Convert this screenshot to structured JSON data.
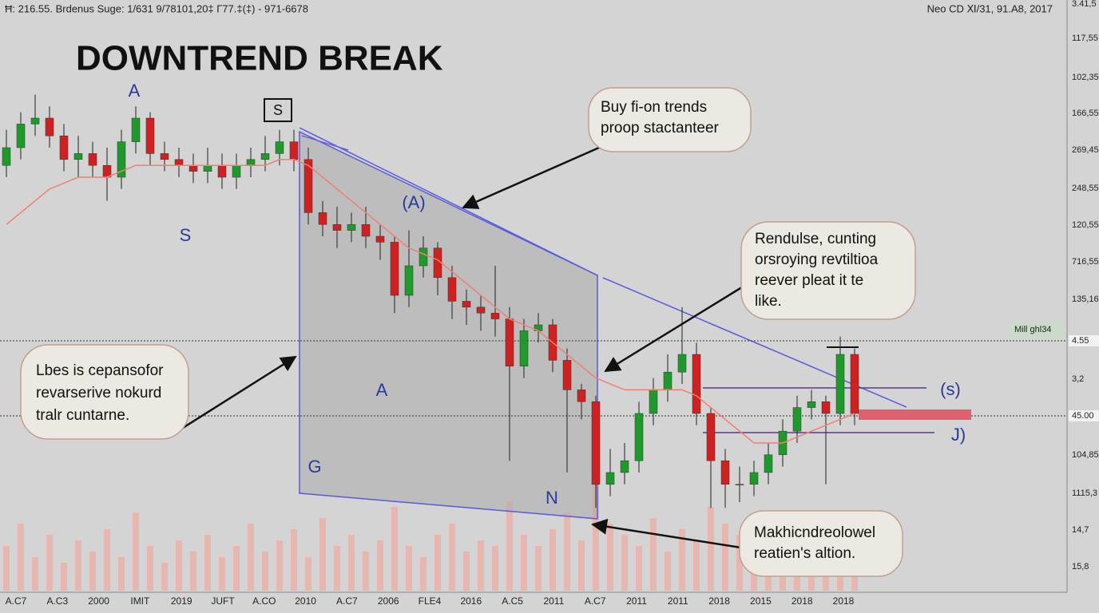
{
  "chart_data": {
    "type": "candlestick",
    "title": "DOWNTREND BREAK",
    "header_left": "Ħ: 216.55. Brdenus Suge: 1/631 9/78101,20‡ Г77.‡(‡) - 971-6678",
    "header_right": "Neo CD Ⅺ/31, 91.A8, 2017",
    "ylim": [
      0,
      100
    ],
    "up_color": "#1e9a2a",
    "down_color": "#d02020",
    "ma_color": "#f08070",
    "volume_color": "#f2a8a0",
    "open": [
      72,
      75,
      79,
      80,
      77,
      73,
      74,
      72,
      70,
      76,
      80,
      74,
      73,
      72,
      71,
      72,
      70,
      72,
      73,
      74,
      76,
      73,
      64,
      62,
      61,
      62,
      60,
      59,
      50,
      55,
      58,
      53,
      49,
      48,
      47,
      46,
      38,
      44,
      45,
      39,
      34,
      32,
      18,
      20,
      22,
      30,
      34,
      37,
      40,
      30,
      22,
      18,
      18,
      20,
      23,
      27,
      31,
      32,
      30,
      40
    ],
    "high": [
      78,
      81,
      84,
      82,
      79,
      77,
      76,
      75,
      78,
      82,
      81,
      76,
      75,
      74,
      75,
      74,
      74,
      75,
      77,
      78,
      78,
      75,
      66,
      65,
      64,
      65,
      62,
      60,
      61,
      60,
      59,
      55,
      51,
      50,
      55,
      48,
      46,
      47,
      46,
      41,
      35,
      33,
      24,
      25,
      32,
      36,
      40,
      48,
      42,
      31,
      24,
      21,
      22,
      25,
      29,
      33,
      34,
      33,
      43,
      41
    ],
    "low": [
      70,
      73,
      77,
      75,
      71,
      70,
      70,
      66,
      68,
      74,
      72,
      71,
      70,
      69,
      69,
      68,
      68,
      70,
      71,
      72,
      71,
      62,
      60,
      58,
      59,
      58,
      56,
      47,
      48,
      53,
      50,
      46,
      45,
      44,
      43,
      22,
      36,
      42,
      37,
      20,
      29,
      14,
      16,
      18,
      20,
      28,
      32,
      35,
      28,
      14,
      14,
      15,
      16,
      18,
      21,
      25,
      29,
      18,
      28,
      28
    ],
    "close": [
      75,
      79,
      80,
      77,
      73,
      74,
      72,
      70,
      76,
      80,
      74,
      73,
      72,
      71,
      72,
      70,
      72,
      73,
      74,
      76,
      73,
      64,
      62,
      61,
      62,
      60,
      59,
      50,
      55,
      58,
      53,
      49,
      48,
      47,
      46,
      38,
      44,
      45,
      39,
      34,
      32,
      18,
      20,
      22,
      30,
      34,
      37,
      40,
      30,
      22,
      18,
      18,
      20,
      23,
      27,
      31,
      32,
      30,
      40,
      30
    ],
    "ma": [
      62,
      64,
      66,
      68,
      69,
      70,
      70,
      70,
      71,
      72,
      72,
      72,
      72,
      72,
      72,
      72,
      72,
      72,
      72,
      73,
      73,
      72,
      70,
      68,
      66,
      64,
      62,
      60,
      58,
      57,
      56,
      54,
      52,
      50,
      48,
      46,
      45,
      44,
      42,
      40,
      38,
      36,
      35,
      34,
      34,
      34,
      34,
      34,
      33,
      31,
      29,
      27,
      25,
      25,
      25,
      26,
      27,
      28,
      29,
      30
    ],
    "volume": [
      8,
      12,
      6,
      10,
      5,
      9,
      7,
      11,
      6,
      14,
      8,
      5,
      9,
      7,
      10,
      6,
      8,
      12,
      7,
      9,
      11,
      6,
      13,
      8,
      10,
      7,
      9,
      15,
      8,
      6,
      10,
      12,
      7,
      9,
      8,
      16,
      10,
      8,
      11,
      14,
      9,
      22,
      12,
      10,
      8,
      13,
      7,
      11,
      9,
      15,
      12,
      10,
      8,
      9,
      7,
      11,
      10,
      8,
      12,
      9
    ],
    "x_labels": [
      "A.C7",
      "A.C3",
      "2000",
      "IMIT",
      "2019",
      "JUFT",
      "A.CO",
      "2010",
      "A.C7",
      "2006",
      "FLE4",
      "2016",
      "A.C5",
      "2011",
      "A.C7",
      "2011",
      "2011",
      "2018",
      "2015",
      "2018",
      "2018"
    ],
    "y_labels": [
      "3.41,5",
      "117,55",
      "102,35",
      "166,55",
      "269,45",
      "248,55",
      "120,55",
      "716,55",
      "135,16",
      "3,2",
      "104,85",
      "1115,3",
      "14,7",
      "15,8"
    ],
    "price_tags": [
      "Mill ghl34",
      "4.55",
      "45.00"
    ],
    "markers": [
      "A",
      "S",
      "S",
      "(A)",
      "A",
      "G",
      "N",
      "(s)",
      "J)"
    ],
    "annotations": [
      {
        "lines": [
          "Buy fi-on trends",
          "proop stactanteer"
        ]
      },
      {
        "lines": [
          "Rendulse, cunting",
          "orsroying revtiltioa",
          "reever pleat it te",
          "like."
        ]
      },
      {
        "lines": [
          "Lbes is cepansofor",
          "revarserive nokurd",
          "tralr cuntarne."
        ]
      },
      {
        "lines": [
          "Makhicndreolowel",
          "reatien's altion."
        ]
      }
    ]
  }
}
